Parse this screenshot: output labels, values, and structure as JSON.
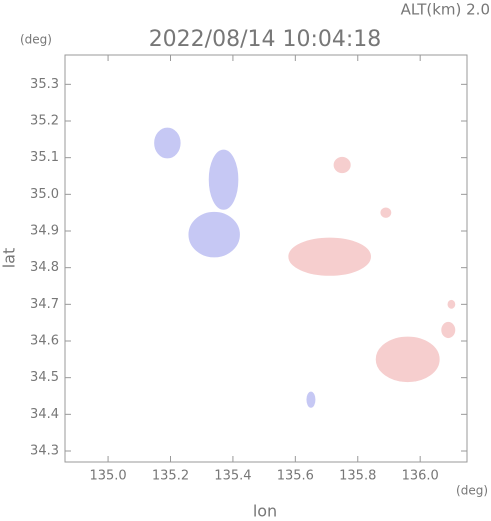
{
  "chart_data": {
    "type": "map",
    "title": "2022/08/14 10:04:18",
    "subtitle": "ALT(km) 2.0",
    "y_unit": "(deg)",
    "x_unit": "(deg)",
    "x_label": "lon",
    "y_label": "lat",
    "xlim": [
      134.862,
      136.15
    ],
    "ylim": [
      34.27,
      35.38
    ],
    "xticks": [
      {
        "value": 135,
        "label": "135.0"
      },
      135.2,
      135.4,
      135.6,
      135.8,
      {
        "value": 136,
        "label": "136.0"
      }
    ],
    "yticks": [
      34.3,
      34.4,
      34.5,
      34.6,
      34.7,
      34.8,
      34.9,
      {
        "value": 35,
        "label": "35.0"
      },
      35.1,
      35.2,
      35.3
    ],
    "series": [
      {
        "color": "#c4c6f4",
        "x": [
          135.19,
          135.37,
          135.34,
          135.65
        ],
        "y": [
          35.14,
          35.04,
          34.89,
          34.44
        ],
        "rx": [
          0.04,
          0.045,
          0.08,
          0.012
        ],
        "ry": [
          0.04,
          0.08,
          0.06,
          0.02
        ]
      },
      {
        "color": "#f6cccc",
        "x": [
          135.71,
          135.75,
          135.89,
          135.96,
          136.09,
          136.1
        ],
        "y": [
          34.83,
          35.08,
          34.95,
          34.55,
          34.63,
          34.7
        ],
        "rx": [
          0.13,
          0.025,
          0.015,
          0.1,
          0.02,
          0.01
        ],
        "ry": [
          0.05,
          0.02,
          0.012,
          0.06,
          0.02,
          0.01
        ]
      }
    ]
  }
}
